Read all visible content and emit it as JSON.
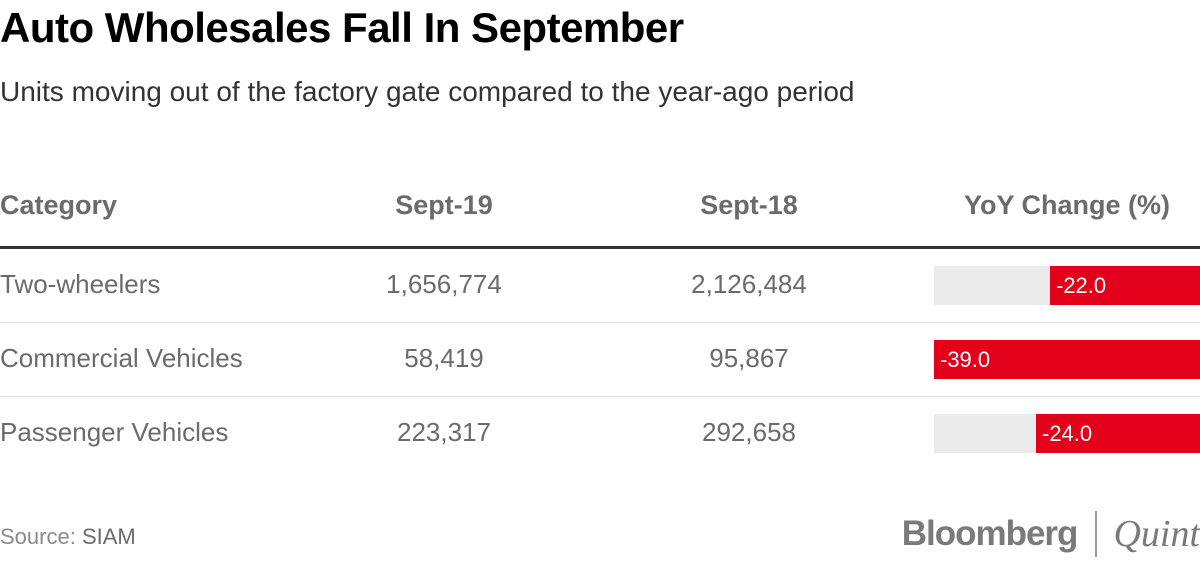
{
  "title": "Auto Wholesales Fall In September",
  "subtitle": "Units moving out of the factory gate compared to the year-ago period",
  "source_label": "Source:",
  "source_value": "SIAM",
  "logo": {
    "brand": "Bloomberg",
    "partner": "Quint"
  },
  "colors": {
    "bar": "#e3001b",
    "track": "#ebebeb"
  },
  "chart_data": {
    "type": "table",
    "title": "Auto Wholesales Fall In September",
    "subtitle": "Units moving out of the factory gate compared to the year-ago period",
    "columns": [
      "Category",
      "Sept-19",
      "Sept-18",
      "YoY Change (%)"
    ],
    "rows": [
      {
        "category": "Two-wheelers",
        "sept19": "1,656,774",
        "sept18": "2,126,484",
        "yoy": -22.0,
        "yoy_label": "-22.0"
      },
      {
        "category": "Commercial Vehicles",
        "sept19": "58,419",
        "sept18": "95,867",
        "yoy": -39.0,
        "yoy_label": "-39.0"
      },
      {
        "category": "Passenger Vehicles",
        "sept19": "223,317",
        "sept18": "292,658",
        "yoy": -24.0,
        "yoy_label": "-24.0"
      }
    ],
    "bar_range": [
      -39.0,
      0
    ]
  }
}
